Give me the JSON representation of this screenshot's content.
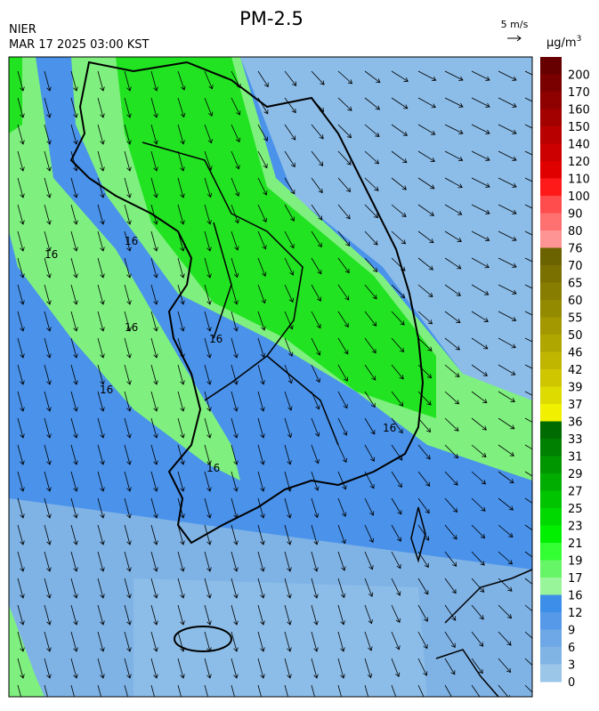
{
  "header": {
    "title": "PM-2.5",
    "source": "NIER",
    "timestamp": "MAR 17 2025 03:00 KST",
    "wind_scale": "5 m/s"
  },
  "colorbar": {
    "unit": "μg/m",
    "unit_sup": "3",
    "levels": [
      200,
      170,
      160,
      150,
      140,
      120,
      110,
      100,
      90,
      80,
      76,
      70,
      65,
      60,
      55,
      50,
      46,
      42,
      39,
      37,
      36,
      33,
      31,
      29,
      27,
      25,
      23,
      21,
      19,
      17,
      16,
      12,
      9,
      6,
      3,
      0
    ],
    "colors": [
      "#660000",
      "#7a0000",
      "#8f0000",
      "#a30000",
      "#b80000",
      "#cc0000",
      "#e00000",
      "#ff1a1a",
      "#ff4d4d",
      "#ff7070",
      "#ff9494",
      "#6b6300",
      "#7a7000",
      "#877d00",
      "#948a00",
      "#a39800",
      "#b0a600",
      "#c0b600",
      "#cfc600",
      "#dedb00",
      "#f0f000",
      "#006b00",
      "#008000",
      "#009600",
      "#00ad00",
      "#00c400",
      "#00d900",
      "#00f000",
      "#33ff33",
      "#66f566",
      "#99f599",
      "#3c8ee8",
      "#5599e8",
      "#6fa8e6",
      "#80b4e4",
      "#9cc6e8"
    ]
  },
  "contour_labels": [
    "16",
    "16",
    "16",
    "16",
    "16",
    "16",
    "16"
  ]
}
